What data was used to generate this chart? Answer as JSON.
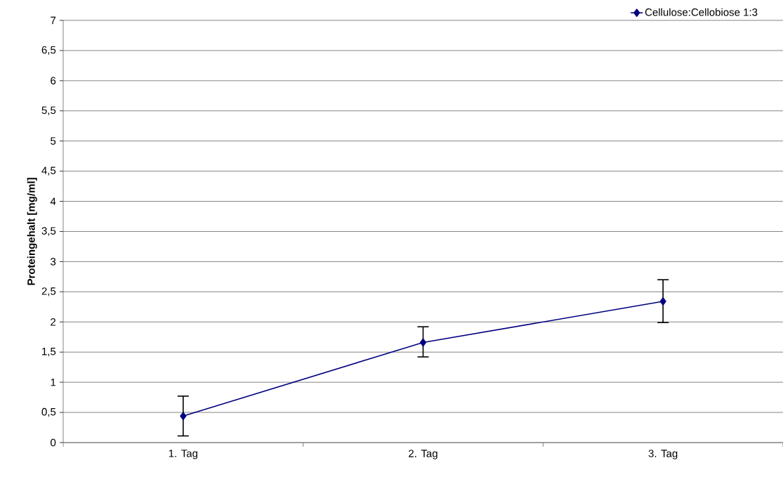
{
  "chart_data": {
    "type": "line",
    "ylabel": "Proteingehalt [mg/ml]",
    "categories": [
      "1. Tag",
      "2. Tag",
      "3. Tag"
    ],
    "series": [
      {
        "name": "Cellulose:Cellobiose 1:3",
        "color": "#000080",
        "values": [
          0.44,
          1.66,
          2.34
        ],
        "errors": [
          [
            0.11,
            0.77
          ],
          [
            1.42,
            1.92
          ],
          [
            1.99,
            2.7
          ]
        ]
      }
    ],
    "ylim": [
      0,
      7
    ],
    "yticks": [
      0,
      {
        "value": 0.5,
        "label": "0,5"
      },
      1,
      {
        "value": 1.5,
        "label": "1,5"
      },
      2,
      {
        "value": 2.5,
        "label": "2,5"
      },
      3,
      {
        "value": 3.5,
        "label": "3,5"
      },
      4,
      {
        "value": 4.5,
        "label": "4,5"
      },
      5,
      {
        "value": 5.5,
        "label": "5,5"
      },
      6,
      {
        "value": 6.5,
        "label": "6,5"
      },
      7
    ],
    "grid": "y",
    "legend": "top right",
    "marker": "diamond",
    "line_style": "solid"
  }
}
